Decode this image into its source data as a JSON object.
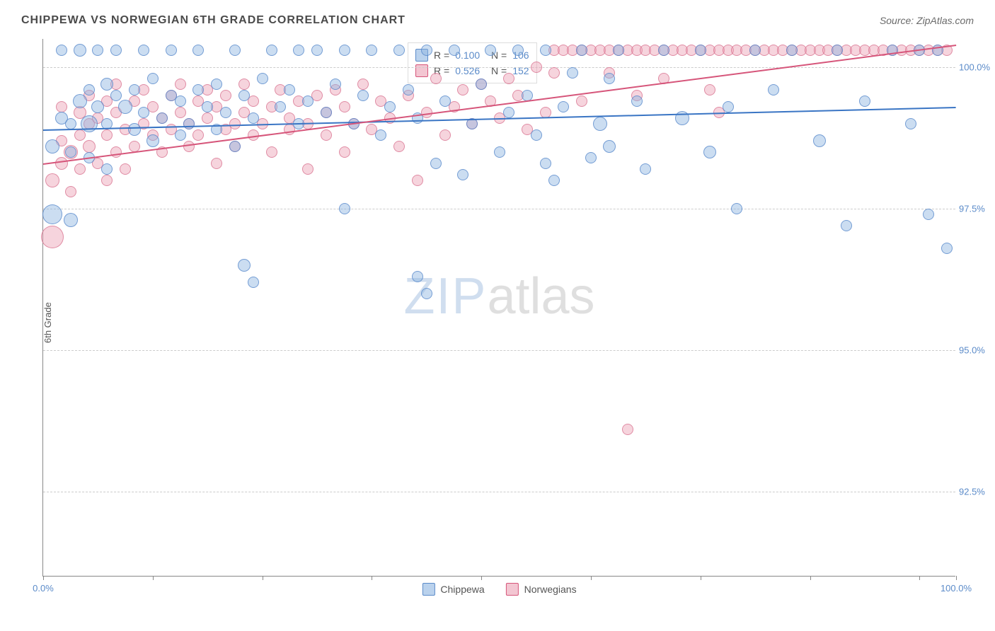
{
  "title": "CHIPPEWA VS NORWEGIAN 6TH GRADE CORRELATION CHART",
  "source": "Source: ZipAtlas.com",
  "y_axis_label": "6th Grade",
  "watermark": {
    "part1": "ZIP",
    "part2": "atlas"
  },
  "chart": {
    "type": "scatter",
    "xlim": [
      0,
      100
    ],
    "ylim": [
      91,
      100.5
    ],
    "background_color": "#ffffff",
    "grid_color": "#cccccc",
    "grid_dash": true,
    "y_gridlines": [
      92.5,
      95.0,
      97.5,
      100.0
    ],
    "y_tick_labels": [
      "92.5%",
      "95.0%",
      "97.5%",
      "100.0%"
    ],
    "x_ticks": [
      0,
      12,
      24,
      36,
      48,
      60,
      72,
      84,
      96,
      100
    ],
    "x_tick_labels": {
      "0": "0.0%",
      "100": "100.0%"
    },
    "series": {
      "chippewa": {
        "label": "Chippewa",
        "color_fill": "rgba(140,180,225,0.45)",
        "color_stroke": "#5b8bc9",
        "marker_base_radius": 8,
        "R": "0.100",
        "N": "106",
        "trend": {
          "x1": 0,
          "y1": 98.9,
          "x2": 100,
          "y2": 99.3,
          "color": "#3a75c4",
          "width": 2
        }
      },
      "norwegians": {
        "label": "Norwegians",
        "color_fill": "rgba(235,160,180,0.45)",
        "color_stroke": "#d6557a",
        "marker_base_radius": 8,
        "R": "0.526",
        "N": "152",
        "trend": {
          "x1": 0,
          "y1": 98.3,
          "x2": 100,
          "y2": 100.4,
          "color": "#d6557a",
          "width": 2
        }
      }
    },
    "bottom_legend": [
      "Chippewa",
      "Norwegians"
    ],
    "stats_legend_pairs": [
      {
        "swatch": "blue",
        "R": "0.100",
        "N": "106"
      },
      {
        "swatch": "pink",
        "R": "0.526",
        "N": "152"
      }
    ],
    "blue_points": [
      [
        1,
        98.6,
        10
      ],
      [
        1,
        97.4,
        14
      ],
      [
        2,
        99.1,
        9
      ],
      [
        2,
        100.3,
        8
      ],
      [
        3,
        97.3,
        10
      ],
      [
        3,
        99.0,
        8
      ],
      [
        3,
        98.5,
        8
      ],
      [
        4,
        99.4,
        10
      ],
      [
        4,
        100.3,
        9
      ],
      [
        5,
        99.6,
        8
      ],
      [
        5,
        99.0,
        12
      ],
      [
        5,
        98.4,
        8
      ],
      [
        6,
        99.3,
        9
      ],
      [
        6,
        100.3,
        8
      ],
      [
        7,
        99.7,
        9
      ],
      [
        7,
        99.0,
        8
      ],
      [
        7,
        98.2,
        8
      ],
      [
        8,
        99.5,
        8
      ],
      [
        8,
        100.3,
        8
      ],
      [
        9,
        99.3,
        10
      ],
      [
        10,
        98.9,
        9
      ],
      [
        10,
        99.6,
        8
      ],
      [
        11,
        100.3,
        8
      ],
      [
        11,
        99.2,
        8
      ],
      [
        12,
        99.8,
        8
      ],
      [
        12,
        98.7,
        9
      ],
      [
        13,
        99.1,
        8
      ],
      [
        14,
        99.5,
        8
      ],
      [
        14,
        100.3,
        8
      ],
      [
        15,
        98.8,
        8
      ],
      [
        15,
        99.4,
        8
      ],
      [
        16,
        99.0,
        8
      ],
      [
        17,
        99.6,
        8
      ],
      [
        17,
        100.3,
        8
      ],
      [
        18,
        99.3,
        8
      ],
      [
        19,
        98.9,
        8
      ],
      [
        19,
        99.7,
        8
      ],
      [
        20,
        99.2,
        8
      ],
      [
        21,
        100.3,
        8
      ],
      [
        21,
        98.6,
        8
      ],
      [
        22,
        99.5,
        8
      ],
      [
        22,
        96.5,
        9
      ],
      [
        23,
        99.1,
        8
      ],
      [
        23,
        96.2,
        8
      ],
      [
        24,
        99.8,
        8
      ],
      [
        25,
        100.3,
        8
      ],
      [
        26,
        99.3,
        8
      ],
      [
        27,
        99.6,
        8
      ],
      [
        28,
        100.3,
        8
      ],
      [
        28,
        99.0,
        8
      ],
      [
        29,
        99.4,
        8
      ],
      [
        30,
        100.3,
        8
      ],
      [
        31,
        99.2,
        8
      ],
      [
        32,
        99.7,
        8
      ],
      [
        33,
        100.3,
        8
      ],
      [
        33,
        97.5,
        8
      ],
      [
        34,
        99.0,
        8
      ],
      [
        35,
        99.5,
        8
      ],
      [
        36,
        100.3,
        8
      ],
      [
        37,
        98.8,
        8
      ],
      [
        38,
        99.3,
        8
      ],
      [
        39,
        100.3,
        8
      ],
      [
        40,
        99.6,
        8
      ],
      [
        41,
        99.1,
        8
      ],
      [
        41,
        96.3,
        8
      ],
      [
        42,
        100.3,
        8
      ],
      [
        42,
        96.0,
        8
      ],
      [
        43,
        98.3,
        8
      ],
      [
        44,
        99.4,
        8
      ],
      [
        45,
        100.3,
        8
      ],
      [
        46,
        98.1,
        8
      ],
      [
        47,
        99.0,
        8
      ],
      [
        48,
        99.7,
        8
      ],
      [
        49,
        100.3,
        8
      ],
      [
        50,
        98.5,
        8
      ],
      [
        51,
        99.2,
        8
      ],
      [
        52,
        100.3,
        8
      ],
      [
        53,
        99.5,
        8
      ],
      [
        54,
        98.8,
        8
      ],
      [
        55,
        100.3,
        8
      ],
      [
        55,
        98.3,
        8
      ],
      [
        56,
        98.0,
        8
      ],
      [
        57,
        99.3,
        8
      ],
      [
        58,
        99.9,
        8
      ],
      [
        59,
        100.3,
        8
      ],
      [
        60,
        98.4,
        8
      ],
      [
        61,
        99.0,
        10
      ],
      [
        62,
        98.6,
        9
      ],
      [
        62,
        99.8,
        8
      ],
      [
        63,
        100.3,
        8
      ],
      [
        65,
        99.4,
        8
      ],
      [
        66,
        98.2,
        8
      ],
      [
        68,
        100.3,
        8
      ],
      [
        70,
        99.1,
        10
      ],
      [
        72,
        100.3,
        8
      ],
      [
        73,
        98.5,
        9
      ],
      [
        75,
        99.3,
        8
      ],
      [
        76,
        97.5,
        8
      ],
      [
        78,
        100.3,
        8
      ],
      [
        80,
        99.6,
        8
      ],
      [
        82,
        100.3,
        8
      ],
      [
        85,
        98.7,
        9
      ],
      [
        87,
        100.3,
        8
      ],
      [
        88,
        97.2,
        8
      ],
      [
        90,
        99.4,
        8
      ],
      [
        93,
        100.3,
        8
      ],
      [
        95,
        99.0,
        8
      ],
      [
        96,
        100.3,
        8
      ],
      [
        97,
        97.4,
        8
      ],
      [
        98,
        100.3,
        8
      ],
      [
        99,
        96.8,
        8
      ]
    ],
    "pink_points": [
      [
        1,
        98.0,
        10
      ],
      [
        1,
        97.0,
        16
      ],
      [
        2,
        98.3,
        9
      ],
      [
        2,
        98.7,
        8
      ],
      [
        2,
        99.3,
        8
      ],
      [
        3,
        98.5,
        10
      ],
      [
        3,
        97.8,
        8
      ],
      [
        4,
        98.8,
        8
      ],
      [
        4,
        99.2,
        9
      ],
      [
        4,
        98.2,
        8
      ],
      [
        5,
        99.0,
        8
      ],
      [
        5,
        98.6,
        9
      ],
      [
        5,
        99.5,
        8
      ],
      [
        6,
        98.3,
        8
      ],
      [
        6,
        99.1,
        8
      ],
      [
        7,
        98.8,
        8
      ],
      [
        7,
        99.4,
        8
      ],
      [
        7,
        98.0,
        8
      ],
      [
        8,
        98.5,
        8
      ],
      [
        8,
        99.2,
        8
      ],
      [
        8,
        99.7,
        8
      ],
      [
        9,
        98.9,
        8
      ],
      [
        9,
        98.2,
        8
      ],
      [
        10,
        99.4,
        8
      ],
      [
        10,
        98.6,
        8
      ],
      [
        11,
        99.0,
        8
      ],
      [
        11,
        99.6,
        8
      ],
      [
        12,
        98.8,
        8
      ],
      [
        12,
        99.3,
        8
      ],
      [
        13,
        98.5,
        8
      ],
      [
        13,
        99.1,
        8
      ],
      [
        14,
        99.5,
        8
      ],
      [
        14,
        98.9,
        8
      ],
      [
        15,
        99.2,
        8
      ],
      [
        15,
        99.7,
        8
      ],
      [
        16,
        98.6,
        8
      ],
      [
        16,
        99.0,
        8
      ],
      [
        17,
        99.4,
        8
      ],
      [
        17,
        98.8,
        8
      ],
      [
        18,
        99.1,
        8
      ],
      [
        18,
        99.6,
        8
      ],
      [
        19,
        98.3,
        8
      ],
      [
        19,
        99.3,
        8
      ],
      [
        20,
        98.9,
        8
      ],
      [
        20,
        99.5,
        8
      ],
      [
        21,
        99.0,
        8
      ],
      [
        21,
        98.6,
        8
      ],
      [
        22,
        99.2,
        8
      ],
      [
        22,
        99.7,
        8
      ],
      [
        23,
        98.8,
        8
      ],
      [
        23,
        99.4,
        8
      ],
      [
        24,
        99.0,
        8
      ],
      [
        25,
        99.3,
        8
      ],
      [
        25,
        98.5,
        8
      ],
      [
        26,
        99.6,
        8
      ],
      [
        27,
        98.9,
        8
      ],
      [
        27,
        99.1,
        8
      ],
      [
        28,
        99.4,
        8
      ],
      [
        29,
        98.2,
        8
      ],
      [
        29,
        99.0,
        8
      ],
      [
        30,
        99.5,
        8
      ],
      [
        31,
        98.8,
        8
      ],
      [
        31,
        99.2,
        8
      ],
      [
        32,
        99.6,
        8
      ],
      [
        33,
        98.5,
        8
      ],
      [
        33,
        99.3,
        8
      ],
      [
        34,
        99.0,
        8
      ],
      [
        35,
        99.7,
        8
      ],
      [
        36,
        98.9,
        8
      ],
      [
        37,
        99.4,
        8
      ],
      [
        38,
        99.1,
        8
      ],
      [
        39,
        98.6,
        8
      ],
      [
        40,
        99.5,
        8
      ],
      [
        41,
        98.0,
        8
      ],
      [
        42,
        99.2,
        8
      ],
      [
        43,
        99.8,
        8
      ],
      [
        44,
        98.8,
        8
      ],
      [
        45,
        99.3,
        8
      ],
      [
        46,
        99.6,
        8
      ],
      [
        47,
        99.0,
        8
      ],
      [
        48,
        99.7,
        8
      ],
      [
        49,
        99.4,
        8
      ],
      [
        50,
        99.1,
        8
      ],
      [
        51,
        99.8,
        8
      ],
      [
        52,
        99.5,
        8
      ],
      [
        53,
        98.9,
        8
      ],
      [
        54,
        100.0,
        8
      ],
      [
        55,
        99.2,
        8
      ],
      [
        56,
        99.9,
        8
      ],
      [
        56,
        100.3,
        8
      ],
      [
        57,
        100.3,
        8
      ],
      [
        58,
        100.3,
        8
      ],
      [
        59,
        100.3,
        8
      ],
      [
        59,
        99.4,
        8
      ],
      [
        60,
        100.3,
        8
      ],
      [
        61,
        100.3,
        8
      ],
      [
        62,
        100.3,
        8
      ],
      [
        62,
        99.9,
        8
      ],
      [
        63,
        100.3,
        8
      ],
      [
        64,
        100.3,
        8
      ],
      [
        64,
        93.6,
        8
      ],
      [
        65,
        100.3,
        8
      ],
      [
        65,
        99.5,
        8
      ],
      [
        66,
        100.3,
        8
      ],
      [
        67,
        100.3,
        8
      ],
      [
        68,
        100.3,
        8
      ],
      [
        68,
        99.8,
        8
      ],
      [
        69,
        100.3,
        8
      ],
      [
        70,
        100.3,
        8
      ],
      [
        71,
        100.3,
        8
      ],
      [
        72,
        100.3,
        8
      ],
      [
        73,
        100.3,
        8
      ],
      [
        73,
        99.6,
        8
      ],
      [
        74,
        100.3,
        8
      ],
      [
        74,
        99.2,
        8
      ],
      [
        75,
        100.3,
        8
      ],
      [
        76,
        100.3,
        8
      ],
      [
        77,
        100.3,
        8
      ],
      [
        78,
        100.3,
        8
      ],
      [
        79,
        100.3,
        8
      ],
      [
        80,
        100.3,
        8
      ],
      [
        81,
        100.3,
        8
      ],
      [
        82,
        100.3,
        8
      ],
      [
        83,
        100.3,
        8
      ],
      [
        84,
        100.3,
        8
      ],
      [
        85,
        100.3,
        8
      ],
      [
        86,
        100.3,
        8
      ],
      [
        87,
        100.3,
        8
      ],
      [
        88,
        100.3,
        8
      ],
      [
        89,
        100.3,
        8
      ],
      [
        90,
        100.3,
        8
      ],
      [
        91,
        100.3,
        8
      ],
      [
        92,
        100.3,
        8
      ],
      [
        93,
        100.3,
        8
      ],
      [
        94,
        100.3,
        8
      ],
      [
        95,
        100.3,
        8
      ],
      [
        96,
        100.3,
        8
      ],
      [
        97,
        100.3,
        8
      ],
      [
        98,
        100.3,
        8
      ],
      [
        99,
        100.3,
        8
      ]
    ]
  }
}
